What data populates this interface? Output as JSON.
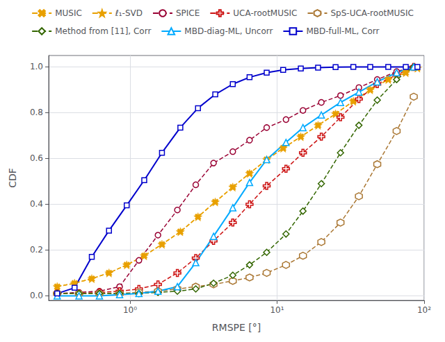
{
  "chart_data": {
    "type": "line",
    "xlabel": "RMSPE [°]",
    "ylabel": "CDF",
    "log": "x",
    "xlim": [
      0.28,
      100
    ],
    "xticks": [
      {
        "value": 1,
        "label": "10⁰"
      },
      {
        "value": 10,
        "label": "10¹"
      },
      {
        "value": 100,
        "label": "10²"
      }
    ],
    "ylim": [
      -0.02,
      1.05
    ],
    "yticks": [
      {
        "value": 0,
        "label": "0.0"
      },
      0.2,
      0.4,
      0.6,
      0.8,
      {
        "value": 1.0,
        "label": "1.0"
      }
    ],
    "grid": true,
    "legend": "top",
    "series": [
      {
        "name": "MUSIC",
        "color": "#E8A000",
        "line_style": "dashed",
        "marker": "x",
        "x": [
          0.32,
          0.42,
          0.55,
          0.72,
          0.95,
          1.25,
          1.65,
          2.2,
          2.9,
          3.8,
          5.0,
          6.5,
          8.5,
          11.0,
          14.5,
          19.0,
          25.0,
          33.0,
          43.0,
          57.0,
          75.0,
          90.0
        ],
        "values": [
          0.04,
          0.055,
          0.075,
          0.1,
          0.135,
          0.175,
          0.225,
          0.28,
          0.345,
          0.41,
          0.475,
          0.535,
          0.595,
          0.645,
          0.695,
          0.745,
          0.795,
          0.85,
          0.9,
          0.945,
          0.975,
          0.995
        ]
      },
      {
        "name": "ℓ₁-SVD",
        "color": "#E8A000",
        "line_style": "dashed",
        "marker": "star",
        "x": [
          0.32,
          0.42,
          0.55,
          0.72,
          0.95,
          1.25,
          1.65,
          2.2,
          2.9,
          3.8,
          5.0,
          6.5,
          8.5,
          11.0,
          14.5,
          19.0,
          25.0,
          33.0,
          43.0,
          57.0,
          75.0,
          90.0
        ],
        "values": [
          0.04,
          0.055,
          0.075,
          0.1,
          0.135,
          0.175,
          0.225,
          0.28,
          0.345,
          0.41,
          0.475,
          0.535,
          0.595,
          0.645,
          0.695,
          0.745,
          0.795,
          0.85,
          0.9,
          0.945,
          0.975,
          0.995
        ]
      },
      {
        "name": "SPICE",
        "color": "#990033",
        "line_style": "dashed",
        "marker": "circle",
        "x": [
          0.32,
          0.45,
          0.62,
          0.85,
          1.15,
          1.55,
          2.1,
          2.8,
          3.7,
          5.0,
          6.5,
          8.5,
          11.5,
          15.0,
          20.0,
          27.0,
          36.0,
          48.0,
          65.0,
          85.0
        ],
        "values": [
          0.01,
          0.015,
          0.02,
          0.04,
          0.155,
          0.265,
          0.375,
          0.485,
          0.58,
          0.63,
          0.68,
          0.735,
          0.77,
          0.81,
          0.845,
          0.875,
          0.91,
          0.945,
          0.98,
          1.0
        ]
      },
      {
        "name": "UCA-rootMUSIC",
        "color": "#CC1111",
        "line_style": "dashed",
        "marker": "plus",
        "x": [
          0.32,
          0.45,
          0.62,
          0.85,
          1.15,
          1.55,
          2.1,
          2.8,
          3.7,
          5.0,
          6.5,
          8.5,
          11.5,
          15.0,
          20.0,
          27.0,
          36.0,
          48.0,
          65.0,
          85.0
        ],
        "values": [
          0.01,
          0.01,
          0.015,
          0.02,
          0.03,
          0.05,
          0.1,
          0.165,
          0.24,
          0.32,
          0.4,
          0.48,
          0.555,
          0.625,
          0.695,
          0.78,
          0.86,
          0.925,
          0.965,
          1.0
        ]
      },
      {
        "name": "SpS-UCA-rootMUSIC",
        "color": "#AA7733",
        "line_style": "dashed",
        "marker": "hexagon",
        "x": [
          0.32,
          0.45,
          0.62,
          0.85,
          1.15,
          1.55,
          2.1,
          2.8,
          3.7,
          5.0,
          6.5,
          8.5,
          11.5,
          15.0,
          20.0,
          27.0,
          36.0,
          48.0,
          65.0,
          85.0
        ],
        "values": [
          0.01,
          0.01,
          0.01,
          0.01,
          0.015,
          0.02,
          0.03,
          0.04,
          0.05,
          0.065,
          0.08,
          0.1,
          0.135,
          0.175,
          0.235,
          0.32,
          0.435,
          0.575,
          0.72,
          0.87
        ]
      },
      {
        "name": "Method from [11], Corr",
        "color": "#336600",
        "line_style": "dashed",
        "marker": "diamond",
        "x": [
          0.32,
          0.45,
          0.62,
          0.85,
          1.15,
          1.55,
          2.1,
          2.8,
          3.7,
          5.0,
          6.5,
          8.5,
          11.5,
          15.0,
          20.0,
          27.0,
          36.0,
          48.0,
          65.0,
          85.0
        ],
        "values": [
          0.01,
          0.01,
          0.01,
          0.01,
          0.01,
          0.015,
          0.02,
          0.03,
          0.055,
          0.09,
          0.135,
          0.19,
          0.27,
          0.37,
          0.49,
          0.625,
          0.745,
          0.855,
          0.945,
          1.0
        ]
      },
      {
        "name": "MBD-diag-ML, Uncorr",
        "color": "#00AAFF",
        "line_style": "solid",
        "marker": "triangle",
        "x": [
          0.32,
          0.45,
          0.62,
          0.85,
          1.15,
          1.55,
          2.1,
          2.8,
          3.7,
          5.0,
          6.5,
          8.5,
          11.5,
          15.0,
          20.0,
          27.0,
          36.0,
          48.0,
          65.0,
          85.0
        ],
        "values": [
          0.0,
          0.0,
          0.0,
          0.005,
          0.01,
          0.02,
          0.04,
          0.145,
          0.26,
          0.385,
          0.495,
          0.595,
          0.67,
          0.735,
          0.79,
          0.845,
          0.89,
          0.935,
          0.975,
          1.0
        ]
      },
      {
        "name": "MBD-full-ML, Corr",
        "color": "#0000CC",
        "line_style": "solid",
        "marker": "square",
        "x": [
          0.32,
          0.42,
          0.55,
          0.72,
          0.95,
          1.25,
          1.65,
          2.2,
          2.9,
          3.8,
          5.0,
          6.5,
          8.5,
          11.0,
          14.5,
          19.0,
          25.0,
          33.0,
          43.0,
          57.0,
          75.0,
          90.0
        ],
        "values": [
          0.01,
          0.035,
          0.17,
          0.285,
          0.395,
          0.505,
          0.625,
          0.735,
          0.82,
          0.88,
          0.925,
          0.955,
          0.975,
          0.987,
          0.993,
          0.997,
          0.999,
          1.0,
          1.0,
          1.0,
          1.0,
          1.0
        ]
      }
    ]
  }
}
